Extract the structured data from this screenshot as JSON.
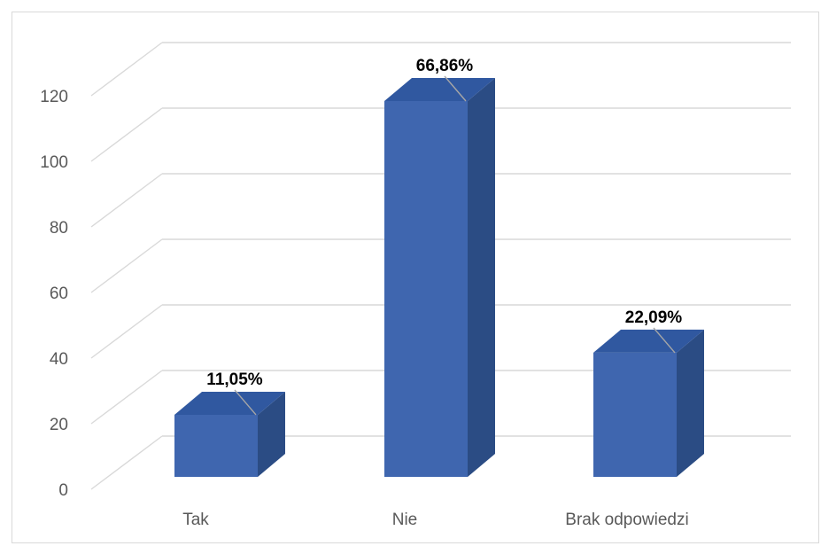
{
  "chart_data": {
    "type": "bar",
    "style": "3d-column",
    "categories": [
      "Tak",
      "Nie",
      "Brak odpowiedzi"
    ],
    "values": [
      19,
      115,
      38
    ],
    "data_labels": [
      "11,05%",
      "66,86%",
      "22,09%"
    ],
    "ylim": [
      0,
      120
    ],
    "yticks": [
      "0",
      "20",
      "40",
      "60",
      "80",
      "100",
      "120"
    ],
    "title": "",
    "xlabel": "",
    "ylabel": "",
    "grid": true,
    "legend": "none",
    "colors": {
      "bar_front": "#3F66AF",
      "bar_side": "#2B4C84",
      "bar_top": "#3058A0",
      "grid": "#d9d9d9",
      "axis_text": "#595959",
      "label_text": "#000000"
    }
  }
}
